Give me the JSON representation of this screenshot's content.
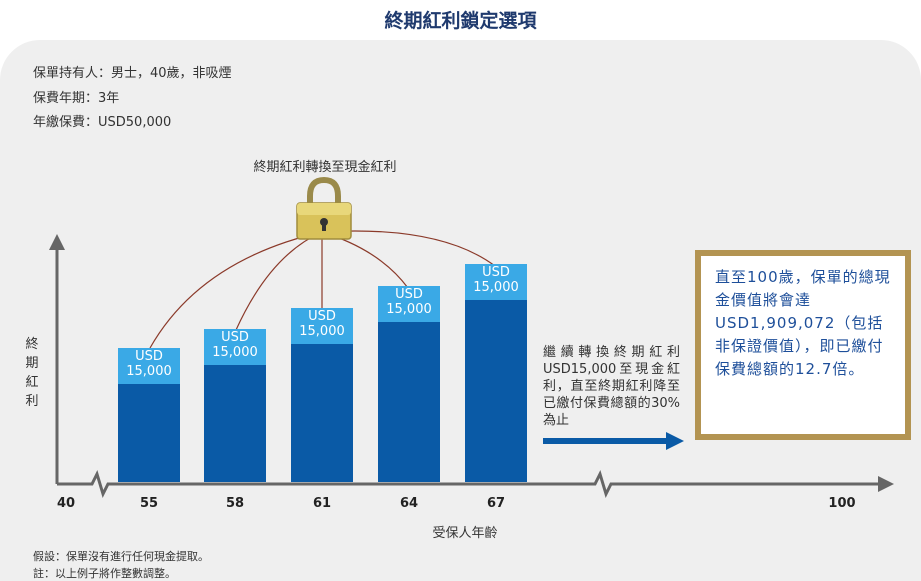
{
  "title": "終期紅利鎖定選項",
  "info": {
    "holder": "保單持有人：男士，40歲，非吸煙",
    "term": "保費年期：3年",
    "premium": "年繳保費：USD50,000"
  },
  "lock_label": "終期紅利轉換至現金紅利",
  "y_axis_label": "終期紅利",
  "x_axis_label": "受保人年齡",
  "x_ticks": [
    "40",
    "55",
    "58",
    "61",
    "64",
    "67",
    "100"
  ],
  "bars": [
    {
      "age": "55",
      "currency": "USD",
      "amount": "15,000"
    },
    {
      "age": "58",
      "currency": "USD",
      "amount": "15,000"
    },
    {
      "age": "61",
      "currency": "USD",
      "amount": "15,000"
    },
    {
      "age": "64",
      "currency": "USD",
      "amount": "15,000"
    },
    {
      "age": "67",
      "currency": "USD",
      "amount": "15,000"
    }
  ],
  "continue_note": "繼續轉換終期紅利USD15,000至現金紅利，直至終期紅利降至已繳付保費總額的30%為止",
  "highlight_box": "直至100歲，保單的總現金價值將會達USD1,909,072（包括非保證價值），即已繳付保費總額的12.7倍。",
  "footnotes": {
    "assumption": "假設：保單沒有進行任何現金提取。",
    "note": "註：以上例子將作整數調整。"
  },
  "colors": {
    "bar_dark": "#0a5aa6",
    "bar_light": "#3aa9e6",
    "title": "#1f3a6e",
    "box_border": "#b39452",
    "box_text": "#1e4f9a",
    "arc": "#8b3a2a",
    "axis": "#666666",
    "arrow": "#0a5aa6"
  },
  "icons": [
    "padlock-icon",
    "arrow-right-icon",
    "axis-break-icon"
  ]
}
